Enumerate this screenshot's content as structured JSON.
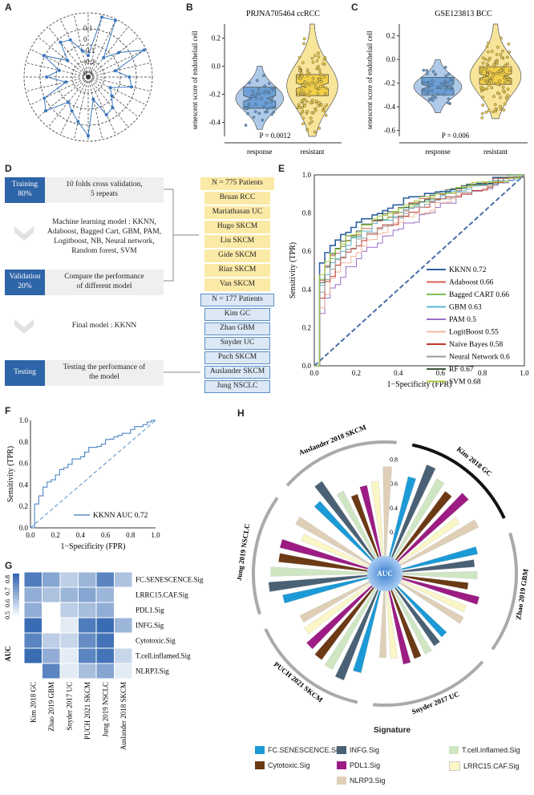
{
  "panels": {
    "a": "A",
    "b": "B",
    "c": "C",
    "d": "D",
    "e": "E",
    "f": "F",
    "g": "G",
    "h": "H"
  },
  "radar": {
    "tick_labels": [
      "0.1",
      "0",
      "-0.1",
      "-0.2",
      "0.3"
    ],
    "n_spokes": 28
  },
  "violin_b": {
    "title": "PRJNA705464 ccRCC",
    "ylabel": "senescent score of endothelail cell",
    "categories": [
      "response",
      "resistant"
    ],
    "yticks": [
      "0.2",
      "0.0",
      "-0.2",
      "-0.4"
    ],
    "pvalue": "P = 0.0012",
    "colors": [
      "#6b9fd6",
      "#f2cf47"
    ]
  },
  "violin_c": {
    "title": "GSE123813 BCC",
    "ylabel": "senescent score of endothelail cell",
    "categories": [
      "response",
      "resistant"
    ],
    "yticks": [
      "0.2",
      "0.0",
      "-0.2",
      "-0.4",
      "-0.6"
    ],
    "pvalue": "P = 0.006",
    "colors": [
      "#6b9fd6",
      "#f2cf47"
    ]
  },
  "flow": {
    "training_label": "Training\n80%",
    "cv_text": "10 folds cross validation,\n5 repeats",
    "ml_text": "Machine learning model : KKNN,\nAdaboost, Bagged Cart, GBM, PAM,\nLogitboost, NB, Neural network,\nRandom forest, SVM",
    "validation_label": "Validation\n20%",
    "compare_text": "Compare the performance\nof different model",
    "final_text": "Final model : KKNN",
    "testing_label": "Testing",
    "testing_text": "Testing the performance of\nthe model",
    "train_header": "N = 775 Patients",
    "train_cohorts": [
      "Bruan RCC",
      "Mariathasan UC",
      "Hugo SKCM",
      "Liu SKCM",
      "Gide SKCM",
      "Riaz SKCM",
      "Van SKCM"
    ],
    "test_header": "N = 177 Patients",
    "test_cohorts": [
      "Kim GC",
      "Zhao GBM",
      "Snyder UC",
      "Puch SKCM",
      "Auslander SKCM",
      "Jung NSCLC"
    ]
  },
  "roc_e": {
    "xlabel": "1−Specificity (FPR)",
    "ylabel": "Sensitivity (TPR)",
    "ticks": [
      "0.0",
      "0.2",
      "0.4",
      "0.6",
      "0.8",
      "1.0"
    ],
    "legend": [
      {
        "label": "KKNN 0.72",
        "color": "#2e5fa0"
      },
      {
        "label": "Adaboost 0.66",
        "color": "#d95f55"
      },
      {
        "label": "Bagged CART 0.66",
        "color": "#7fbf5a"
      },
      {
        "label": "GBM 0.63",
        "color": "#5bb7d6"
      },
      {
        "label": "PAM 0.5",
        "color": "#9a6fc6"
      },
      {
        "label": "LogitBoost 0.55",
        "color": "#f2b8a0"
      },
      {
        "label": "Naive Bayes 0.58",
        "color": "#c0392b"
      },
      {
        "label": "Neural Network 0.6",
        "color": "#9a9a9a"
      },
      {
        "label": "RF 0.67",
        "color": "#3d5a3d"
      },
      {
        "label": "SVM 0.68",
        "color": "#a6c93a"
      }
    ]
  },
  "roc_f": {
    "xlabel": "1−Specificity (FPR)",
    "ylabel": "Sensitivity (TPR)",
    "ticks": [
      "0.0",
      "0.2",
      "0.4",
      "0.6",
      "0.8",
      "1.0"
    ],
    "legend": "KKNN AUC 0.72",
    "color": "#5b8fc7"
  },
  "heatmap_g": {
    "rows": [
      "FC.SENESCENCE.Sig",
      "LRRC15.CAF.Sig",
      "PDL1.Sig",
      "INFG.Sig",
      "Cytotoxic.Sig",
      "T.cell.inflamed.Sig",
      "NLRP3.Sig"
    ],
    "cols": [
      "Kim 2018 GC",
      "Zhao 2019 GBM",
      "Snyder 2017 UC",
      "PUCH 2021 SKCM",
      "Jung 2019 NSCLC",
      "Auslander 2018 SKCM"
    ],
    "values": [
      [
        0.82,
        0.72,
        0.62,
        0.68,
        0.8,
        0.65
      ],
      [
        0.7,
        0.65,
        0.68,
        0.72,
        0.68,
        0.5
      ],
      [
        0.7,
        0.5,
        0.62,
        0.66,
        0.7,
        0.5
      ],
      [
        0.86,
        0.5,
        0.55,
        0.82,
        0.86,
        0.68
      ],
      [
        0.8,
        0.62,
        0.6,
        0.78,
        0.84,
        0.5
      ],
      [
        0.86,
        0.7,
        0.55,
        0.8,
        0.84,
        0.6
      ],
      [
        0.5,
        0.8,
        0.55,
        0.66,
        0.72,
        0.55
      ]
    ],
    "legend_title": "AUC",
    "legend_ticks": [
      "0.8",
      "0.7",
      "0.6",
      "0.5"
    ]
  },
  "radial_h": {
    "center_label": "AUC",
    "scale_ticks": [
      "0.8",
      "0.6",
      "0.4",
      "0.2"
    ],
    "groups": [
      "Kim 2018 GC",
      "Zhao 2019 GBM",
      "Snyder 2017 UC",
      "PUCH 2021 SKCM",
      "Jung 2019 NSCLC",
      "Auslander 2018 SKCM"
    ],
    "legend_title": "Signature",
    "signatures": [
      {
        "name": "FC.SENESCENCE.Sig",
        "color": "#1b9ad6"
      },
      {
        "name": "INFG.Sig",
        "color": "#4a6175"
      },
      {
        "name": "T.cell.inflamed.Sig",
        "color": "#cfe6c3"
      },
      {
        "name": "Cytotoxic.Sig",
        "color": "#6b3a14"
      },
      {
        "name": "PDL1.Sig",
        "color": "#9c1c84"
      },
      {
        "name": "LRRC15.CAF.Sig",
        "color": "#fbf6c6"
      },
      {
        "name": "NLRP3.Sig",
        "color": "#dfcfb7"
      }
    ],
    "values": [
      [
        0.68,
        0.82,
        0.75,
        0.7,
        0.78,
        0.6,
        0.72
      ],
      [
        0.64,
        0.6,
        0.62,
        0.55,
        0.66,
        0.58,
        0.6
      ],
      [
        0.56,
        0.58,
        0.6,
        0.6,
        0.62,
        0.56,
        0.55
      ],
      [
        0.7,
        0.8,
        0.76,
        0.74,
        0.72,
        0.66,
        0.64
      ],
      [
        0.72,
        0.82,
        0.8,
        0.74,
        0.75,
        0.6,
        0.7
      ],
      [
        0.66,
        0.78,
        0.62,
        0.55,
        0.6,
        0.62,
        0.74
      ]
    ]
  }
}
